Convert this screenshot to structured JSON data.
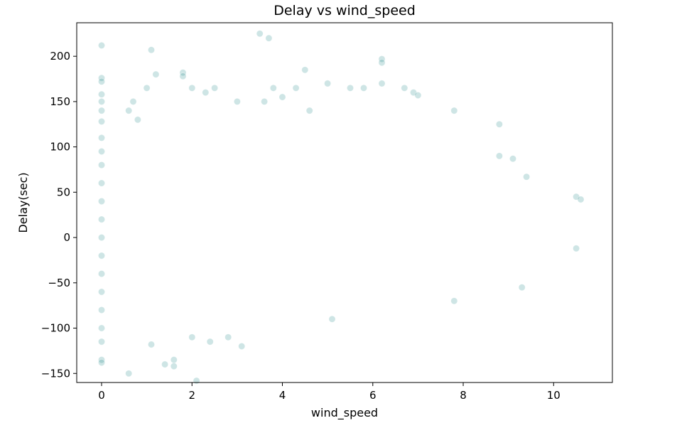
{
  "chart_data": {
    "type": "scatter",
    "title": "Delay vs wind_speed",
    "xlabel": "wind_speed",
    "ylabel": "Delay(sec)",
    "xlim": [
      -0.55,
      11.3
    ],
    "ylim": [
      -160,
      237
    ],
    "xticks": [
      0,
      2,
      4,
      6,
      8,
      10
    ],
    "yticks": [
      -150,
      -100,
      -50,
      0,
      50,
      100,
      150,
      200
    ],
    "grid": false,
    "legend": "none",
    "marker_color": "#1f8a8a",
    "marker_alpha": 0.22,
    "series": [
      {
        "points": [
          [
            0,
            212
          ],
          [
            0,
            176
          ],
          [
            0,
            172
          ],
          [
            0,
            158
          ],
          [
            0,
            150
          ],
          [
            0,
            140
          ],
          [
            0,
            128
          ],
          [
            0,
            110
          ],
          [
            0,
            95
          ],
          [
            0,
            80
          ],
          [
            0,
            60
          ],
          [
            0,
            40
          ],
          [
            0,
            20
          ],
          [
            0,
            0
          ],
          [
            0,
            -20
          ],
          [
            0,
            -40
          ],
          [
            0,
            -60
          ],
          [
            0,
            -80
          ],
          [
            0,
            -100
          ],
          [
            0,
            -115
          ],
          [
            0,
            -135
          ],
          [
            0,
            -138
          ],
          [
            0.6,
            -150
          ],
          [
            0.6,
            140
          ],
          [
            0.7,
            150
          ],
          [
            0.8,
            130
          ],
          [
            1.0,
            165
          ],
          [
            1.1,
            207
          ],
          [
            1.1,
            -118
          ],
          [
            1.2,
            180
          ],
          [
            1.4,
            -140
          ],
          [
            1.6,
            -135
          ],
          [
            1.6,
            -142
          ],
          [
            1.8,
            182
          ],
          [
            1.8,
            178
          ],
          [
            2.0,
            165
          ],
          [
            2.0,
            -110
          ],
          [
            2.1,
            -158
          ],
          [
            2.3,
            160
          ],
          [
            2.4,
            -115
          ],
          [
            2.5,
            165
          ],
          [
            2.8,
            -110
          ],
          [
            3.0,
            150
          ],
          [
            3.1,
            -120
          ],
          [
            3.5,
            225
          ],
          [
            3.6,
            150
          ],
          [
            3.7,
            220
          ],
          [
            3.8,
            165
          ],
          [
            4.0,
            155
          ],
          [
            4.3,
            165
          ],
          [
            4.5,
            185
          ],
          [
            4.6,
            140
          ],
          [
            5.0,
            170
          ],
          [
            5.1,
            -90
          ],
          [
            5.5,
            165
          ],
          [
            5.8,
            165
          ],
          [
            6.2,
            197
          ],
          [
            6.2,
            193
          ],
          [
            6.2,
            170
          ],
          [
            6.7,
            165
          ],
          [
            6.9,
            160
          ],
          [
            7.0,
            157
          ],
          [
            7.8,
            140
          ],
          [
            7.8,
            -70
          ],
          [
            8.8,
            125
          ],
          [
            8.8,
            90
          ],
          [
            9.1,
            87
          ],
          [
            9.4,
            67
          ],
          [
            9.3,
            -55
          ],
          [
            10.5,
            45
          ],
          [
            10.6,
            42
          ],
          [
            10.5,
            -12
          ]
        ]
      }
    ]
  }
}
